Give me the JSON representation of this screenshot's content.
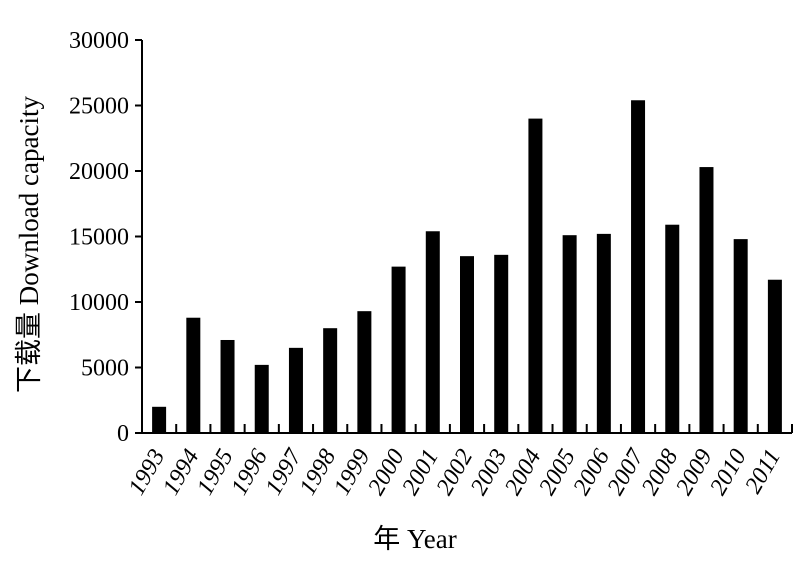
{
  "chart_data": {
    "type": "bar",
    "title": "",
    "xlabel": "年 Year",
    "ylabel": "下载量 Download capacity",
    "categories": [
      "1993",
      "1994",
      "1995",
      "1996",
      "1997",
      "1998",
      "1999",
      "2000",
      "2001",
      "2002",
      "2003",
      "2004",
      "2005",
      "2006",
      "2007",
      "2008",
      "2009",
      "2010",
      "2011"
    ],
    "values": [
      2000,
      8800,
      7100,
      5200,
      6500,
      8000,
      9300,
      12700,
      15400,
      13500,
      13600,
      24000,
      15100,
      15200,
      25400,
      15900,
      20300,
      14800,
      11700
    ],
    "ylim": [
      0,
      30000
    ],
    "yticks": [
      "0",
      "5000",
      "10000",
      "15000",
      "20000",
      "25000",
      "30000"
    ],
    "grid": false,
    "legend": "none",
    "bar_color": "#000000"
  }
}
